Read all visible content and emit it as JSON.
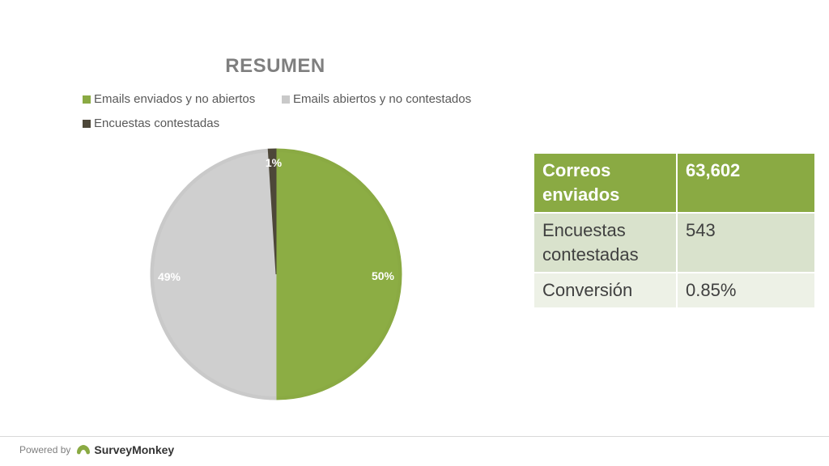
{
  "chart_data": {
    "type": "pie",
    "title": "RESUMEN",
    "slices": [
      {
        "label": "Emails enviados y no abiertos",
        "value": 50,
        "display": "50%",
        "color": "#8aaa43"
      },
      {
        "label": "Emails abiertos y no contestados",
        "value": 49,
        "display": "49%",
        "color": "#c9c9c9"
      },
      {
        "label": "Encuestas contestadas",
        "value": 1,
        "display": "1%",
        "color": "#4d4739"
      }
    ],
    "legend_position": "top"
  },
  "summary_table": {
    "rows": [
      {
        "label": "Correos enviados",
        "value": "63,602"
      },
      {
        "label": "Encuestas contestadas",
        "value": "543"
      },
      {
        "label": "Conversión",
        "value": "0.85%"
      }
    ]
  },
  "footer": {
    "powered_by": "Powered by",
    "brand": "SurveyMonkey"
  }
}
